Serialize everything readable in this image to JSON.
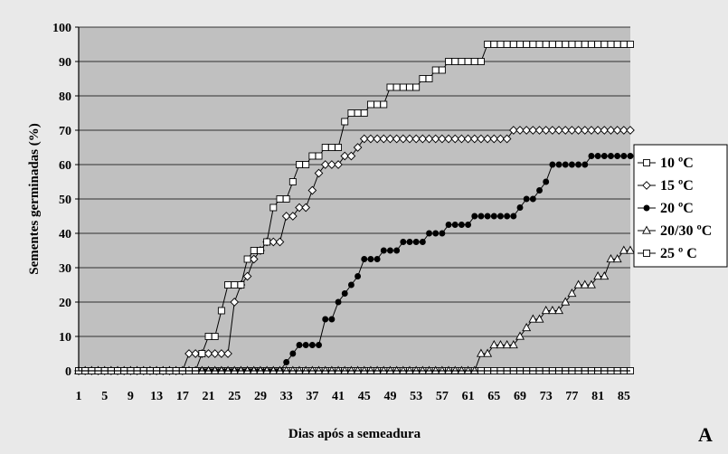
{
  "chart_data": {
    "type": "line",
    "title": "",
    "xlabel": "Dias após a semeadura",
    "ylabel": "Sementes germinadas (%)",
    "panel_label": "A",
    "xlim": [
      1,
      86
    ],
    "ylim": [
      0,
      100
    ],
    "x_ticks": [
      1,
      5,
      9,
      13,
      17,
      21,
      25,
      29,
      33,
      37,
      41,
      45,
      49,
      53,
      57,
      61,
      65,
      69,
      73,
      77,
      81,
      85
    ],
    "y_ticks": [
      0,
      10,
      20,
      30,
      40,
      50,
      60,
      70,
      80,
      90,
      100
    ],
    "grid": "horizontal",
    "legend_position": "right",
    "colors": {
      "plot_bg": "#c0c0c0",
      "outer_bg": "#e9e9e9",
      "line": "#000000",
      "marker_fill": "#ffffff"
    },
    "series": [
      {
        "name": "10 ºC",
        "marker": "square",
        "points": [
          [
            1,
            0
          ],
          [
            86,
            0
          ]
        ]
      },
      {
        "name": "15 ºC",
        "marker": "diamond",
        "points": [
          [
            1,
            0
          ],
          [
            17,
            0
          ],
          [
            18,
            5
          ],
          [
            24,
            5
          ],
          [
            25,
            20
          ],
          [
            26,
            25
          ],
          [
            27,
            27.5
          ],
          [
            28,
            32.5
          ],
          [
            29,
            35
          ],
          [
            30,
            37.5
          ],
          [
            32,
            37.5
          ],
          [
            33,
            45
          ],
          [
            34,
            45
          ],
          [
            35,
            47.5
          ],
          [
            36,
            47.5
          ],
          [
            37,
            52.5
          ],
          [
            38,
            57.5
          ],
          [
            39,
            60
          ],
          [
            41,
            60
          ],
          [
            42,
            62.5
          ],
          [
            43,
            62.5
          ],
          [
            44,
            65
          ],
          [
            45,
            67.5
          ],
          [
            67,
            67.5
          ],
          [
            68,
            70
          ],
          [
            86,
            70
          ]
        ]
      },
      {
        "name": "20 ºC",
        "marker": "dot",
        "points": [
          [
            1,
            0
          ],
          [
            32,
            0
          ],
          [
            33,
            2.5
          ],
          [
            34,
            5
          ],
          [
            35,
            7.5
          ],
          [
            38,
            7.5
          ],
          [
            39,
            15
          ],
          [
            40,
            15
          ],
          [
            41,
            20
          ],
          [
            42,
            22.5
          ],
          [
            43,
            25
          ],
          [
            44,
            27.5
          ],
          [
            45,
            32.5
          ],
          [
            47,
            32.5
          ],
          [
            48,
            35
          ],
          [
            50,
            35
          ],
          [
            51,
            37.5
          ],
          [
            54,
            37.5
          ],
          [
            55,
            40
          ],
          [
            57,
            40
          ],
          [
            58,
            42.5
          ],
          [
            61,
            42.5
          ],
          [
            62,
            45
          ],
          [
            68,
            45
          ],
          [
            69,
            47.5
          ],
          [
            70,
            50
          ],
          [
            71,
            50
          ],
          [
            72,
            52.5
          ],
          [
            73,
            55
          ],
          [
            74,
            60
          ],
          [
            79,
            60
          ],
          [
            80,
            62.5
          ],
          [
            86,
            62.5
          ]
        ]
      },
      {
        "name": "20/30 ºC",
        "marker": "triangle",
        "points": [
          [
            1,
            0
          ],
          [
            62,
            0
          ],
          [
            63,
            5
          ],
          [
            64,
            5
          ],
          [
            65,
            7.5
          ],
          [
            68,
            7.5
          ],
          [
            69,
            10
          ],
          [
            70,
            12.5
          ],
          [
            71,
            15
          ],
          [
            72,
            15
          ],
          [
            73,
            17.5
          ],
          [
            75,
            17.5
          ],
          [
            76,
            20
          ],
          [
            77,
            22.5
          ],
          [
            78,
            25
          ],
          [
            80,
            25
          ],
          [
            81,
            27.5
          ],
          [
            82,
            27.5
          ],
          [
            83,
            32.5
          ],
          [
            84,
            32.5
          ],
          [
            85,
            35
          ],
          [
            86,
            35
          ]
        ]
      },
      {
        "name": "25 º C",
        "marker": "square",
        "points": [
          [
            1,
            0
          ],
          [
            19,
            0
          ],
          [
            20,
            5
          ],
          [
            21,
            10
          ],
          [
            22,
            10
          ],
          [
            23,
            17.5
          ],
          [
            24,
            25
          ],
          [
            26,
            25
          ],
          [
            27,
            32.5
          ],
          [
            28,
            35
          ],
          [
            29,
            35
          ],
          [
            30,
            37.5
          ],
          [
            31,
            47.5
          ],
          [
            32,
            50
          ],
          [
            33,
            50
          ],
          [
            34,
            55
          ],
          [
            35,
            60
          ],
          [
            36,
            60
          ],
          [
            37,
            62.5
          ],
          [
            38,
            62.5
          ],
          [
            39,
            65
          ],
          [
            41,
            65
          ],
          [
            42,
            72.5
          ],
          [
            43,
            75
          ],
          [
            45,
            75
          ],
          [
            46,
            77.5
          ],
          [
            48,
            77.5
          ],
          [
            49,
            82.5
          ],
          [
            53,
            82.5
          ],
          [
            54,
            85
          ],
          [
            55,
            85
          ],
          [
            56,
            87.5
          ],
          [
            57,
            87.5
          ],
          [
            58,
            90
          ],
          [
            63,
            90
          ],
          [
            64,
            95
          ],
          [
            86,
            95
          ]
        ]
      }
    ]
  }
}
